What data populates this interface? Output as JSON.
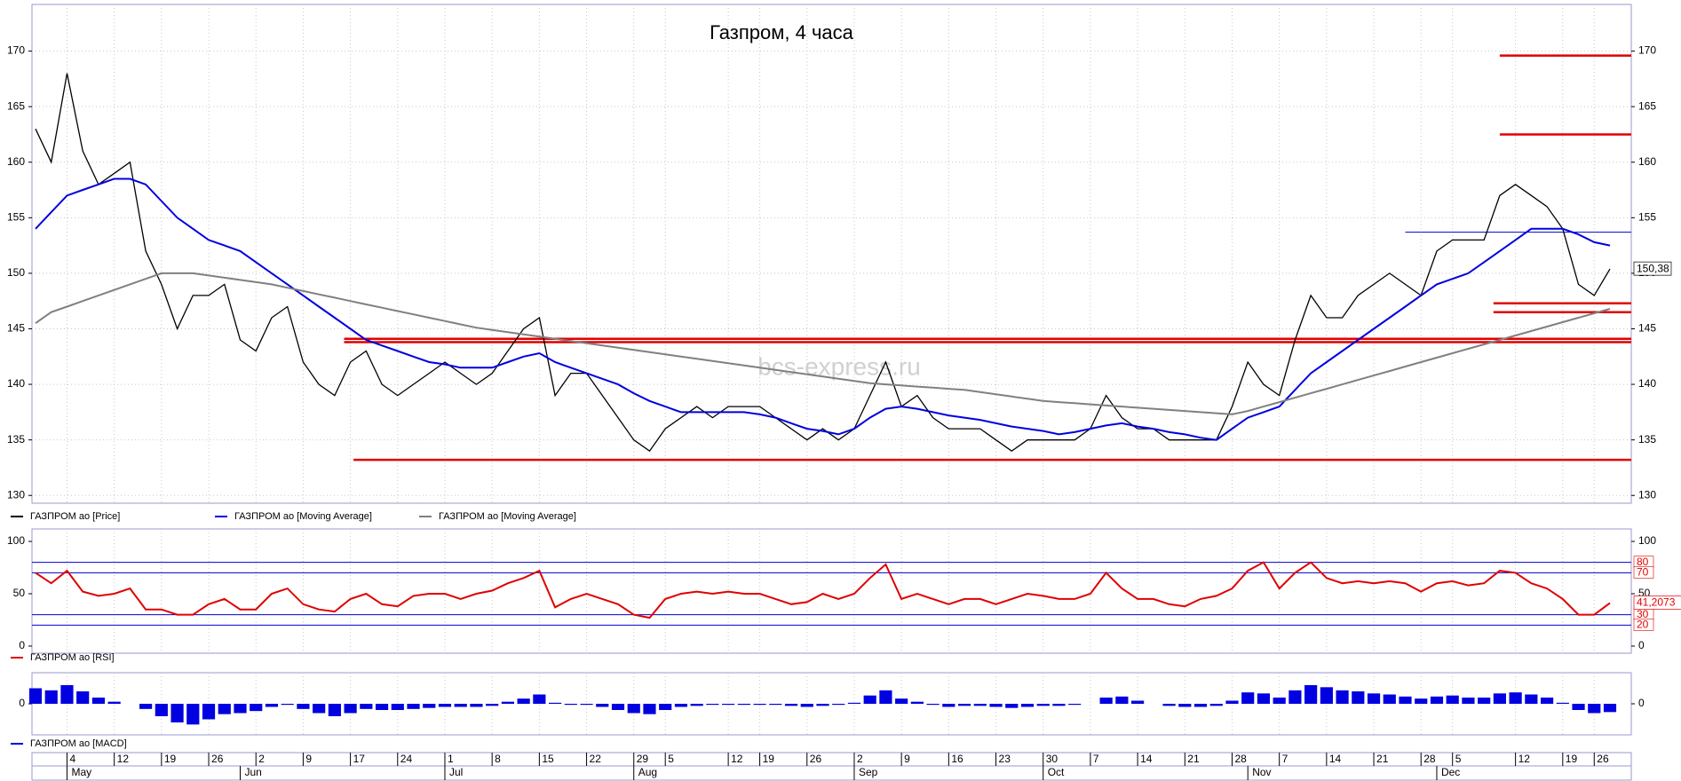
{
  "chart_data": [
    {
      "type": "line",
      "title": "Газпром, 4 часа",
      "watermark": "bcs-express.ru",
      "ylim": [
        129.3,
        174.2
      ],
      "yticks": [
        130,
        135,
        140,
        145,
        150,
        155,
        160,
        165,
        170
      ],
      "grid": true,
      "categories": [
        null,
        null,
        "4",
        null,
        null,
        "12",
        null,
        null,
        "19",
        null,
        null,
        "26",
        null,
        null,
        "2",
        null,
        null,
        "9",
        null,
        null,
        "17",
        null,
        null,
        "24",
        null,
        null,
        "1",
        null,
        null,
        "8",
        null,
        null,
        "15",
        null,
        null,
        "22",
        null,
        null,
        "29",
        null,
        "5",
        null,
        null,
        null,
        "12",
        null,
        "19",
        null,
        null,
        "26",
        null,
        null,
        "2",
        null,
        null,
        "9",
        null,
        null,
        "16",
        null,
        null,
        "23",
        null,
        null,
        "30",
        null,
        null,
        "7",
        null,
        null,
        "14",
        null,
        null,
        "21",
        null,
        null,
        "28",
        null,
        null,
        "7",
        null,
        null,
        "14",
        null,
        null,
        "21",
        null,
        null,
        "28",
        null,
        "5",
        null,
        null,
        null,
        "12",
        null,
        null,
        "19",
        null,
        "26",
        null
      ],
      "months": [
        null,
        null,
        "May",
        null,
        null,
        null,
        null,
        null,
        null,
        null,
        null,
        null,
        null,
        "Jun",
        null,
        null,
        null,
        null,
        null,
        null,
        null,
        null,
        null,
        null,
        null,
        null,
        "Jul",
        null,
        null,
        null,
        null,
        null,
        null,
        null,
        null,
        null,
        null,
        null,
        "Aug",
        null,
        null,
        null,
        null,
        null,
        null,
        null,
        null,
        null,
        null,
        null,
        null,
        null,
        "Sep",
        null,
        null,
        null,
        null,
        null,
        null,
        null,
        null,
        null,
        null,
        null,
        "Oct",
        null,
        null,
        null,
        null,
        null,
        null,
        null,
        null,
        null,
        null,
        null,
        null,
        "Nov",
        null,
        null,
        null,
        null,
        null,
        null,
        null,
        null,
        null,
        null,
        null,
        "Dec",
        null,
        null,
        null,
        null,
        null,
        null,
        null,
        null,
        null,
        null,
        null
      ],
      "series": [
        {
          "name": "ГАЗПРОМ ао [Price]",
          "color": "#000000",
          "values": [
            163,
            160,
            168,
            161,
            158,
            159,
            160,
            152,
            149,
            145,
            148,
            148,
            149,
            144,
            143,
            146,
            147,
            142,
            140,
            139,
            142,
            143,
            140,
            139,
            140,
            141,
            142,
            141,
            140,
            141,
            143,
            145,
            146,
            139,
            141,
            141,
            139,
            137,
            135,
            134,
            136,
            137,
            138,
            137,
            138,
            138,
            138,
            137,
            136,
            135,
            136,
            135,
            136,
            139,
            142,
            138,
            139,
            137,
            136,
            136,
            136,
            135,
            134,
            135,
            135,
            135,
            135,
            136,
            139,
            137,
            136,
            136,
            135,
            135,
            135,
            135,
            138,
            142,
            140,
            139,
            144,
            148,
            146,
            146,
            148,
            149,
            150,
            149,
            148,
            152,
            153,
            153,
            153,
            157,
            158,
            157,
            156,
            154,
            149,
            148,
            150.38
          ]
        },
        {
          "name": "ГАЗПРОМ ао [Moving Average]",
          "color": "#0000e0",
          "values": [
            154,
            155.5,
            157,
            157.5,
            158,
            158.5,
            158.5,
            158,
            156.5,
            155,
            154,
            153,
            152.5,
            152,
            151,
            150,
            149,
            148,
            147,
            146,
            145,
            144,
            143.5,
            143,
            142.5,
            142,
            141.8,
            141.5,
            141.5,
            141.5,
            142,
            142.5,
            142.8,
            142,
            141.5,
            141,
            140.5,
            140,
            139.2,
            138.5,
            138,
            137.5,
            137.5,
            137.5,
            137.5,
            137.5,
            137.3,
            137,
            136.5,
            136,
            135.8,
            135.5,
            136,
            137,
            137.8,
            138,
            137.8,
            137.5,
            137.2,
            137,
            136.8,
            136.5,
            136.2,
            136,
            135.8,
            135.5,
            135.7,
            136,
            136.3,
            136.5,
            136.2,
            136,
            135.7,
            135.5,
            135.2,
            135,
            136,
            137,
            137.5,
            138,
            139.5,
            141,
            142,
            143,
            144,
            145,
            146,
            147,
            148,
            149,
            149.5,
            150,
            151,
            152,
            153,
            154,
            154,
            154,
            153.5,
            152.8,
            152.5
          ]
        },
        {
          "name": "ГАЗПРОМ ао [Moving Average]",
          "color": "#808080",
          "values": [
            145.5,
            146.5,
            147,
            147.5,
            148,
            148.5,
            149,
            149.5,
            150,
            150,
            150,
            149.8,
            149.6,
            149.4,
            149.2,
            149,
            148.7,
            148.4,
            148.1,
            147.8,
            147.5,
            147.2,
            146.9,
            146.6,
            146.3,
            146,
            145.7,
            145.4,
            145.1,
            144.9,
            144.7,
            144.5,
            144.3,
            144.1,
            143.9,
            143.7,
            143.5,
            143.3,
            143.1,
            142.9,
            142.7,
            142.5,
            142.3,
            142.1,
            141.9,
            141.7,
            141.5,
            141.3,
            141.1,
            140.9,
            140.7,
            140.5,
            140.3,
            140.1,
            140,
            139.9,
            139.8,
            139.7,
            139.6,
            139.5,
            139.3,
            139.1,
            138.9,
            138.7,
            138.5,
            138.4,
            138.3,
            138.2,
            138.1,
            138,
            137.9,
            137.8,
            137.7,
            137.6,
            137.5,
            137.4,
            137.3,
            137.6,
            138,
            138.4,
            138.8,
            139.2,
            139.6,
            140,
            140.4,
            140.8,
            141.2,
            141.6,
            142,
            142.4,
            142.8,
            143.2,
            143.6,
            144,
            144.4,
            144.8,
            145.2,
            145.6,
            146,
            146.4,
            146.8
          ]
        }
      ],
      "levels": [
        {
          "value": 133.2,
          "color": "#e00000"
        },
        {
          "value": 143.8,
          "color": "#e00000"
        },
        {
          "value": 144.1,
          "color": "#e00000"
        },
        {
          "value": 169.6,
          "color": "#e00000"
        },
        {
          "value": 162.5,
          "color": "#e00000"
        },
        {
          "value": 147.3,
          "color": "#e00000"
        },
        {
          "value": 146.5,
          "color": "#e00000"
        },
        {
          "value": 153.7,
          "color": "#0000cc"
        }
      ],
      "price_marker": {
        "value": 150.38,
        "label": "150,38"
      }
    },
    {
      "type": "line",
      "ylim": [
        -6.8,
        111.9
      ],
      "yticks": [
        0,
        50,
        100
      ],
      "series": [
        {
          "name": "ГАЗПРОМ ао [RSI]",
          "color": "#e00000",
          "values": [
            70,
            60,
            72,
            52,
            48,
            50,
            55,
            35,
            35,
            30,
            30,
            40,
            45,
            35,
            35,
            50,
            55,
            40,
            35,
            33,
            45,
            50,
            40,
            38,
            48,
            50,
            50,
            45,
            50,
            53,
            60,
            65,
            72,
            37,
            45,
            50,
            45,
            40,
            30,
            27,
            45,
            50,
            52,
            50,
            52,
            50,
            50,
            45,
            40,
            42,
            50,
            45,
            50,
            65,
            78,
            45,
            50,
            45,
            40,
            45,
            45,
            40,
            45,
            50,
            48,
            45,
            45,
            50,
            70,
            55,
            45,
            45,
            40,
            38,
            45,
            48,
            55,
            72,
            80,
            55,
            70,
            80,
            65,
            60,
            62,
            60,
            62,
            60,
            52,
            60,
            62,
            58,
            60,
            72,
            70,
            60,
            55,
            45,
            30,
            30,
            41.2073
          ]
        }
      ],
      "levels": [
        {
          "value": 80,
          "color": "#0000cc"
        },
        {
          "value": 70,
          "color": "#0000cc"
        },
        {
          "value": 30,
          "color": "#0000cc"
        },
        {
          "value": 20,
          "color": "#0000cc"
        }
      ],
      "rsi_marker": {
        "value": 41.2073,
        "label": "41,2073"
      }
    },
    {
      "type": "bar",
      "ylim": [
        -3,
        3
      ],
      "yticks": [
        0
      ],
      "series": [
        {
          "name": "ГАЗПРОМ ао [MACD]",
          "color": "#0000e0",
          "values": [
            1.5,
            1.3,
            1.8,
            1.2,
            0.6,
            0.2,
            0,
            -0.5,
            -1.2,
            -1.8,
            -2,
            -1.5,
            -1,
            -0.9,
            -0.7,
            -0.3,
            -0.1,
            -0.5,
            -0.9,
            -1.2,
            -0.9,
            -0.5,
            -0.6,
            -0.6,
            -0.5,
            -0.4,
            -0.3,
            -0.3,
            -0.3,
            -0.2,
            0.2,
            0.5,
            0.9,
            0.1,
            -0.1,
            -0.1,
            -0.3,
            -0.6,
            -0.9,
            -1,
            -0.6,
            -0.3,
            -0.2,
            -0.1,
            -0.1,
            -0.1,
            -0.1,
            -0.1,
            -0.2,
            -0.3,
            -0.2,
            -0.1,
            0.1,
            0.8,
            1.3,
            0.5,
            0.2,
            -0.1,
            -0.3,
            -0.2,
            -0.2,
            -0.3,
            -0.4,
            -0.3,
            -0.2,
            -0.2,
            -0.1,
            0,
            0.6,
            0.7,
            0.3,
            0,
            -0.2,
            -0.3,
            -0.3,
            -0.2,
            0.3,
            1.1,
            1.0,
            0.6,
            1.3,
            1.8,
            1.6,
            1.3,
            1.2,
            1.0,
            0.9,
            0.7,
            0.5,
            0.7,
            0.8,
            0.6,
            0.6,
            1.0,
            1.1,
            0.9,
            0.6,
            0.1,
            -0.6,
            -0.9,
            -0.8
          ]
        }
      ]
    }
  ]
}
